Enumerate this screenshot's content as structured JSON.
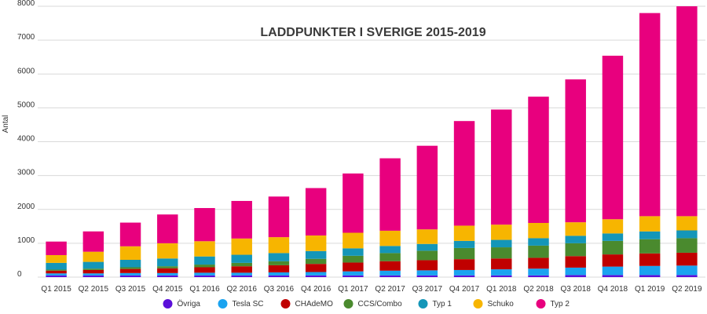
{
  "chart_data": {
    "type": "bar",
    "stacked": true,
    "title": "LADDPUNKTER I SVERIGE 2015-2019",
    "xlabel": "",
    "ylabel": "Antal",
    "ylim": [
      0,
      8000
    ],
    "yticks": [
      0,
      1000,
      2000,
      3000,
      4000,
      5000,
      6000,
      7000,
      8000
    ],
    "grid": true,
    "legend_position": "bottom",
    "categories": [
      "Q1 2015",
      "Q2 2015",
      "Q3 2015",
      "Q4 2015",
      "Q1 2016",
      "Q2 2016",
      "Q3 2016",
      "Q4 2016",
      "Q1 2017",
      "Q2 2017",
      "Q3 2017",
      "Q4 2017",
      "Q1 2018",
      "Q2 2018",
      "Q3 2018",
      "Q4 2018",
      "Q1 2019",
      "Q2 2019"
    ],
    "series": [
      {
        "name": "Övriga",
        "color": "#5b0fd9",
        "values": [
          50,
          50,
          50,
          50,
          50,
          50,
          50,
          50,
          50,
          50,
          50,
          50,
          50,
          50,
          60,
          60,
          60,
          60
        ]
      },
      {
        "name": "Tesla SC",
        "color": "#1aa3f0",
        "values": [
          60,
          60,
          70,
          70,
          80,
          80,
          90,
          100,
          120,
          140,
          150,
          160,
          180,
          200,
          220,
          250,
          270,
          280
        ]
      },
      {
        "name": "CHAdeMO",
        "color": "#c00000",
        "values": [
          80,
          100,
          120,
          140,
          160,
          190,
          210,
          240,
          260,
          280,
          300,
          320,
          320,
          320,
          340,
          360,
          370,
          380
        ]
      },
      {
        "name": "CCS/Combo",
        "color": "#4a8a2e",
        "values": [
          30,
          40,
          50,
          60,
          80,
          100,
          120,
          150,
          200,
          240,
          280,
          330,
          330,
          360,
          380,
          400,
          420,
          430
        ]
      },
      {
        "name": "Typ 1",
        "color": "#1496b8",
        "values": [
          200,
          200,
          220,
          230,
          240,
          240,
          240,
          230,
          220,
          210,
          200,
          210,
          220,
          220,
          220,
          220,
          230,
          230
        ]
      },
      {
        "name": "Schuko",
        "color": "#f7b500",
        "values": [
          230,
          300,
          400,
          450,
          450,
          480,
          470,
          460,
          460,
          450,
          430,
          450,
          450,
          450,
          400,
          420,
          450,
          420
        ]
      },
      {
        "name": "Typ 2",
        "color": "#e8007e",
        "values": [
          400,
          600,
          700,
          850,
          980,
          1110,
          1200,
          1400,
          1750,
          2140,
          2470,
          3090,
          3400,
          3730,
          4220,
          4830,
          6000,
          6200
        ]
      }
    ]
  }
}
